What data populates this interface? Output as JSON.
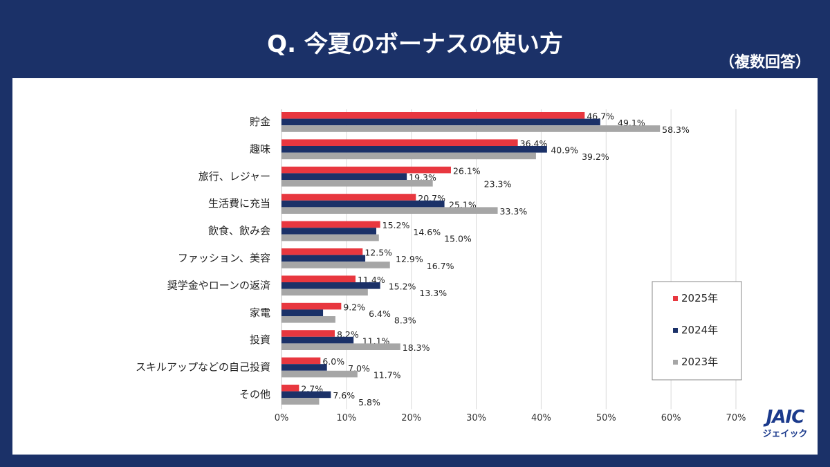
{
  "header": {
    "title": "Q. 今夏のボーナスの使い方",
    "subtitle": "（複数回答）"
  },
  "logo": {
    "text": "JAIC",
    "sub": "ジェイック"
  },
  "chart_data": {
    "type": "bar",
    "orientation": "horizontal",
    "title": "Q. 今夏のボーナスの使い方",
    "categories": [
      "貯金",
      "趣味",
      "旅行、レジャー",
      "生活費に充当",
      "飲食、飲み会",
      "ファッション、美容",
      "奨学金やローンの返済",
      "家電",
      "投資",
      "スキルアップなどの自己投資",
      "その他"
    ],
    "series": [
      {
        "name": "2025年",
        "color": "#e8373f",
        "values": [
          46.7,
          36.4,
          26.1,
          20.7,
          15.2,
          12.5,
          11.4,
          9.2,
          8.2,
          6.0,
          2.7
        ]
      },
      {
        "name": "2024年",
        "color": "#1b3168",
        "values": [
          49.1,
          40.9,
          19.3,
          25.1,
          14.6,
          12.9,
          15.2,
          6.4,
          11.1,
          7.0,
          7.6
        ]
      },
      {
        "name": "2023年",
        "color": "#a6a6a6",
        "values": [
          58.3,
          39.2,
          23.3,
          33.3,
          15.0,
          16.7,
          13.3,
          8.3,
          18.3,
          11.7,
          5.8
        ]
      }
    ],
    "xlim": [
      0,
      70
    ],
    "xticks": [
      "0%",
      "10%",
      "20%",
      "30%",
      "40%",
      "50%",
      "60%",
      "70%"
    ],
    "unit": "%",
    "grid": true,
    "legend": "right"
  }
}
